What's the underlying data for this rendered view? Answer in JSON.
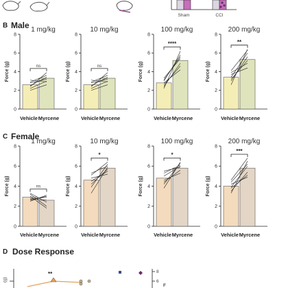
{
  "colors": {
    "male_vehicle": "#f4eeb6",
    "male_myrcene": "#dfe4bd",
    "female_vehicle": "#f4dbbd",
    "female_myrcene": "#e4d6c6",
    "sham": "#dcd6e2",
    "cci": "#c56fbb",
    "dose_line": "#e3a15a",
    "dose_point_blue": "#3a4a8c",
    "dose_point_purple": "#6b2a6a",
    "line": "#222222"
  },
  "panel_a": {
    "x_labels": [
      "Sham",
      "CCI"
    ]
  },
  "panel_b": {
    "letter": "B",
    "title": "Male"
  },
  "panel_c": {
    "letter": "C",
    "title": "Female"
  },
  "panel_d": {
    "letter": "D",
    "title": "Dose Response",
    "left_ylabel": "(g)",
    "significance": "**",
    "right_tick": "8",
    "right_tick2": "6",
    "right_axis_letter": "F"
  },
  "chart_data": [
    {
      "type": "bar",
      "group": "Male",
      "title": "1 mg/kg",
      "categories": [
        "Vehicle",
        "Myrcene"
      ],
      "values": [
        2.6,
        3.3
      ],
      "ylabel": "Force (g)",
      "ylim": [
        0,
        8
      ],
      "yticks": [
        0,
        2,
        4,
        6,
        8
      ],
      "significance": "ns",
      "pairs": [
        [
          2.4,
          3.9
        ],
        [
          2.9,
          3.6
        ],
        [
          2.2,
          3.0
        ],
        [
          2.0,
          2.6
        ],
        [
          2.8,
          3.2
        ],
        [
          3.1,
          2.9
        ],
        [
          2.5,
          3.4
        ]
      ]
    },
    {
      "type": "bar",
      "group": "Male",
      "title": "10 mg/kg",
      "categories": [
        "Vehicle",
        "Myrcene"
      ],
      "values": [
        2.6,
        3.3
      ],
      "ylabel": "Force (g)",
      "ylim": [
        0,
        8
      ],
      "yticks": [
        0,
        2,
        4,
        6,
        8
      ],
      "significance": "ns",
      "pairs": [
        [
          2.4,
          3.9
        ],
        [
          2.9,
          3.6
        ],
        [
          2.2,
          3.0
        ],
        [
          2.0,
          2.6
        ],
        [
          2.8,
          3.2
        ],
        [
          3.1,
          2.9
        ],
        [
          2.5,
          3.4
        ]
      ]
    },
    {
      "type": "bar",
      "group": "Male",
      "title": "100 mg/kg",
      "categories": [
        "Vehicle",
        "Myrcene"
      ],
      "values": [
        2.8,
        5.2
      ],
      "ylabel": "Force (g)",
      "ylim": [
        0,
        8
      ],
      "yticks": [
        0,
        2,
        4,
        6,
        8
      ],
      "significance": "****",
      "pairs": [
        [
          2.2,
          6.2
        ],
        [
          3.0,
          5.8
        ],
        [
          2.6,
          4.6
        ],
        [
          3.3,
          5.4
        ],
        [
          2.4,
          4.9
        ],
        [
          3.1,
          5.6
        ],
        [
          2.8,
          4.2
        ]
      ]
    },
    {
      "type": "bar",
      "group": "Male",
      "title": "200 mg/kg",
      "categories": [
        "Vehicle",
        "Myrcene"
      ],
      "values": [
        3.4,
        5.3
      ],
      "ylabel": "Force (g)",
      "ylim": [
        0,
        8
      ],
      "yticks": [
        0,
        2,
        4,
        6,
        8
      ],
      "significance": "**",
      "pairs": [
        [
          2.6,
          6.4
        ],
        [
          3.4,
          6.0
        ],
        [
          3.9,
          4.9
        ],
        [
          3.0,
          5.6
        ],
        [
          3.7,
          4.4
        ],
        [
          3.2,
          5.2
        ],
        [
          4.1,
          6.3
        ]
      ]
    },
    {
      "type": "bar",
      "group": "Female",
      "title": "1 mg/kg",
      "categories": [
        "Vehicle",
        "Myrcene"
      ],
      "values": [
        2.9,
        2.6
      ],
      "ylabel": "Force (g)",
      "ylim": [
        0,
        8
      ],
      "yticks": [
        0,
        2,
        4,
        6,
        8
      ],
      "significance": "ns",
      "pairs": [
        [
          2.5,
          3.1
        ],
        [
          3.2,
          2.0
        ],
        [
          2.8,
          2.6
        ],
        [
          3.0,
          1.8
        ],
        [
          2.6,
          3.0
        ],
        [
          3.3,
          2.4
        ],
        [
          2.7,
          2.9
        ]
      ]
    },
    {
      "type": "bar",
      "group": "Female",
      "title": "10 mg/kg",
      "categories": [
        "Vehicle",
        "Myrcene"
      ],
      "values": [
        4.6,
        5.8
      ],
      "ylabel": "Force (g)",
      "ylim": [
        0,
        8
      ],
      "yticks": [
        0,
        2,
        4,
        6,
        8
      ],
      "significance": "*",
      "pairs": [
        [
          3.9,
          6.2
        ],
        [
          4.5,
          5.5
        ],
        [
          5.1,
          6.4
        ],
        [
          3.3,
          5.9
        ],
        [
          4.8,
          5.2
        ],
        [
          5.3,
          6.0
        ],
        [
          4.2,
          5.7
        ]
      ]
    },
    {
      "type": "bar",
      "group": "Female",
      "title": "100 mg/kg",
      "categories": [
        "Vehicle",
        "Myrcene"
      ],
      "values": [
        4.8,
        5.8
      ],
      "ylabel": "Force (g)",
      "ylim": [
        0,
        8
      ],
      "yticks": [
        0,
        2,
        4,
        6,
        8
      ],
      "significance": "*",
      "pairs": [
        [
          4.2,
          6.3
        ],
        [
          5.0,
          6.0
        ],
        [
          4.6,
          5.3
        ],
        [
          5.3,
          6.1
        ],
        [
          4.4,
          5.6
        ],
        [
          3.8,
          6.4
        ],
        [
          5.5,
          5.9
        ]
      ]
    },
    {
      "type": "bar",
      "group": "Female",
      "title": "200 mg/kg",
      "categories": [
        "Vehicle",
        "Myrcene"
      ],
      "values": [
        4.0,
        5.8
      ],
      "ylabel": "Force (g)",
      "ylim": [
        0,
        8
      ],
      "yticks": [
        0,
        2,
        4,
        6,
        8
      ],
      "significance": "***",
      "pairs": [
        [
          3.3,
          6.5
        ],
        [
          4.4,
          6.2
        ],
        [
          3.8,
          5.1
        ],
        [
          4.6,
          6.8
        ],
        [
          3.5,
          5.4
        ],
        [
          4.2,
          4.9
        ],
        [
          3.9,
          6.0
        ]
      ]
    }
  ]
}
